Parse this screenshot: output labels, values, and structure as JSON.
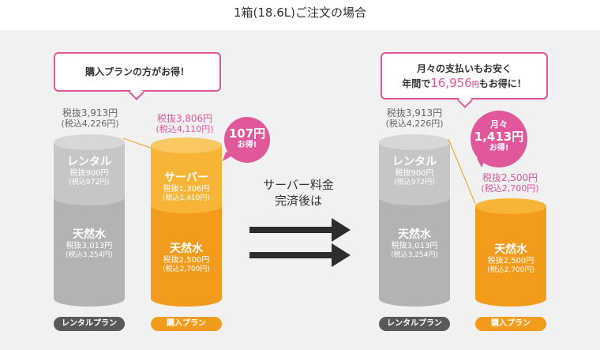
{
  "header": {
    "title": "1箱(18.6L)ご注文の場合"
  },
  "left": {
    "callout": "購入プランの方がお得！",
    "rental": {
      "price_tax_excl": "税抜3,913円",
      "price_tax_incl": "(税込4,226円)",
      "server_title": "レンタル",
      "server_price": "税抜900円",
      "server_incl": "(税込972円)",
      "water_title": "天然水",
      "water_price": "税抜3,013円",
      "water_incl": "(税込3,254円)",
      "plan_label": "レンタルプラン"
    },
    "purchase": {
      "price_tax_excl": "税抜3,806円",
      "price_tax_incl": "(税込4,110円)",
      "server_title": "サーバー",
      "server_price": "税抜1,306円",
      "server_incl": "(税込1,410円)",
      "water_title": "天然水",
      "water_price": "税抜2,500円",
      "water_incl": "(税込2,700円)",
      "plan_label": "購入プラン"
    },
    "badge": {
      "amount": "107円",
      "text": "お得!"
    }
  },
  "middle": {
    "line1": "サーバー料金",
    "line2": "完済後は"
  },
  "right": {
    "callout_line1": "月々の支払いもお安く",
    "callout_line2_prefix": "年間で",
    "callout_line2_amount": "16,956",
    "callout_line2_yen": "円",
    "callout_line2_suffix": "もお得に！",
    "rental": {
      "price_tax_excl": "税抜3,913円",
      "price_tax_incl": "(税込4,226円)",
      "server_title": "レンタル",
      "server_price": "税抜900円",
      "server_incl": "(税込972円)",
      "water_title": "天然水",
      "water_price": "税抜3,013円",
      "water_incl": "(税込3,254円)",
      "plan_label": "レンタルプラン"
    },
    "purchase": {
      "price_tax_excl": "税抜2,500円",
      "price_tax_incl": "(税込2,700円)",
      "water_title": "天然水",
      "water_price": "税抜2,500円",
      "water_incl": "(税込2,700円)",
      "plan_label": "購入プラン"
    },
    "badge": {
      "line1": "月々",
      "amount": "1,413円",
      "text": "お得!"
    }
  },
  "colors": {
    "accent_pink": "#e0579a",
    "orange": "#f29b1d",
    "orange_light": "#f7b538",
    "grey": "#b3b3b3",
    "pill_dark": "#595959"
  }
}
